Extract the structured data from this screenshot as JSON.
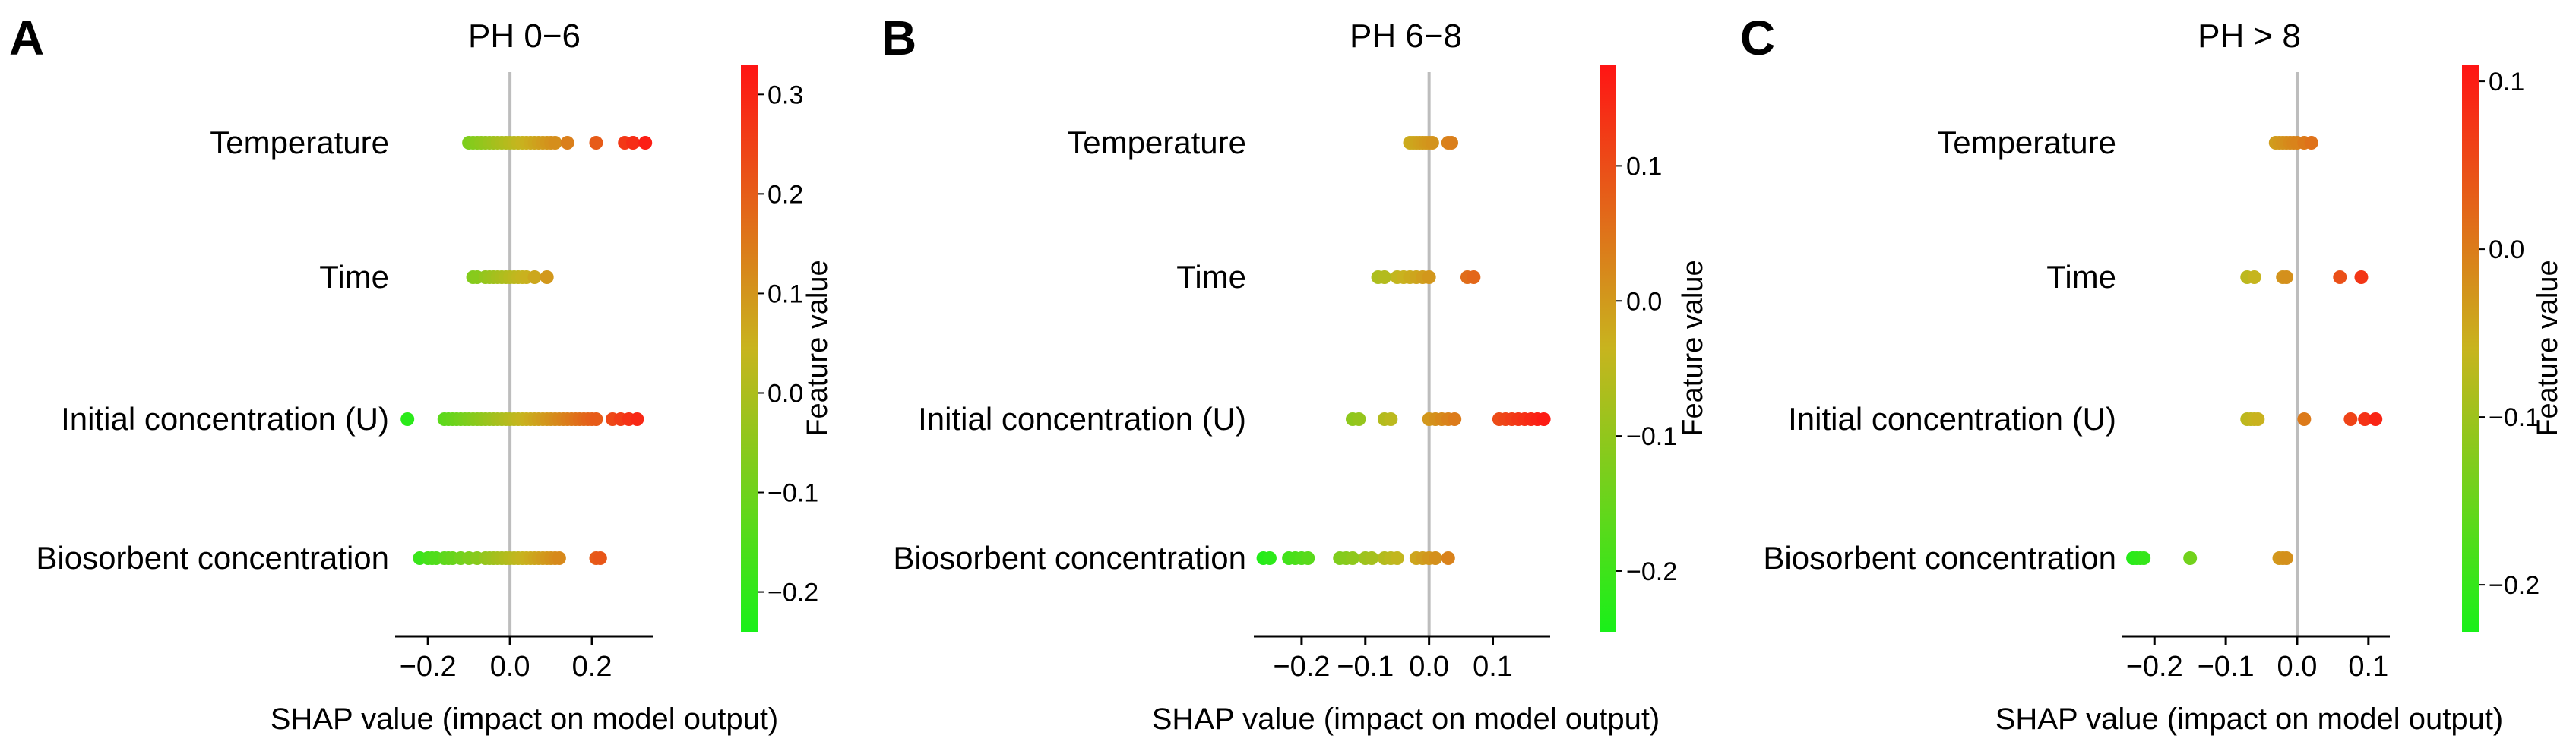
{
  "chart_data": [
    {
      "type": "scatter",
      "panel_letter": "A",
      "title": "PH 0−6",
      "xlabel": "SHAP value (impact on model output)",
      "xlim": [
        -0.28,
        0.35
      ],
      "x_ticks": [
        -0.2,
        0.0,
        0.2
      ],
      "x_tick_labels": [
        "−0.2",
        "0.0",
        "0.2"
      ],
      "features": [
        {
          "name": "Temperature",
          "points": [
            -0.1,
            -0.09,
            -0.08,
            -0.07,
            -0.06,
            -0.05,
            -0.04,
            -0.03,
            -0.02,
            -0.01,
            0.0,
            0.01,
            0.02,
            0.03,
            0.04,
            0.05,
            0.06,
            0.07,
            0.08,
            0.09,
            0.1,
            0.11,
            0.14,
            0.21,
            0.28,
            0.3,
            0.33
          ]
        },
        {
          "name": "Time",
          "points": [
            -0.09,
            -0.08,
            -0.06,
            -0.05,
            -0.04,
            -0.03,
            -0.02,
            -0.01,
            0.0,
            0.01,
            0.02,
            0.03,
            0.04,
            0.06,
            0.09
          ]
        },
        {
          "name": "Initial concentration (U)",
          "points": [
            -0.25,
            -0.16,
            -0.15,
            -0.14,
            -0.13,
            -0.12,
            -0.11,
            -0.1,
            -0.09,
            -0.08,
            -0.07,
            -0.06,
            -0.05,
            -0.04,
            -0.03,
            -0.02,
            -0.01,
            0.0,
            0.01,
            0.02,
            0.03,
            0.04,
            0.05,
            0.06,
            0.07,
            0.08,
            0.09,
            0.1,
            0.11,
            0.12,
            0.13,
            0.14,
            0.15,
            0.16,
            0.17,
            0.18,
            0.19,
            0.2,
            0.21,
            0.25,
            0.27,
            0.29,
            0.31
          ]
        },
        {
          "name": "Biosorbent concentration",
          "points": [
            -0.22,
            -0.2,
            -0.19,
            -0.18,
            -0.16,
            -0.15,
            -0.14,
            -0.12,
            -0.1,
            -0.08,
            -0.06,
            -0.05,
            -0.04,
            -0.03,
            -0.02,
            -0.01,
            0.0,
            0.01,
            0.02,
            0.03,
            0.04,
            0.05,
            0.06,
            0.07,
            0.08,
            0.09,
            0.1,
            0.11,
            0.12,
            0.21,
            0.22
          ]
        }
      ],
      "colorbar": {
        "label": "Feature value",
        "min": -0.24,
        "max": 0.33,
        "ticks": [
          0.3,
          0.2,
          0.1,
          0.0,
          -0.1,
          -0.2
        ],
        "tick_labels": [
          "0.3",
          "0.2",
          "0.1",
          "0.0",
          "−0.1",
          "−0.2"
        ]
      }
    },
    {
      "type": "scatter",
      "panel_letter": "B",
      "title": "PH 6−8",
      "xlabel": "SHAP value (impact on model output)",
      "xlim": [
        -0.275,
        0.19
      ],
      "x_ticks": [
        -0.2,
        -0.1,
        0.0,
        0.1
      ],
      "x_tick_labels": [
        "−0.2",
        "−0.1",
        "0.0",
        "0.1"
      ],
      "features": [
        {
          "name": "Temperature",
          "points": [
            -0.03,
            -0.025,
            -0.02,
            -0.015,
            -0.01,
            -0.005,
            0.0,
            0.005,
            0.03,
            0.035
          ]
        },
        {
          "name": "Time",
          "points": [
            -0.08,
            -0.07,
            -0.05,
            -0.04,
            -0.03,
            -0.02,
            -0.01,
            0.0,
            0.06,
            0.07
          ]
        },
        {
          "name": "Initial concentration (U)",
          "points": [
            -0.12,
            -0.11,
            -0.07,
            -0.06,
            0.0,
            0.01,
            0.02,
            0.03,
            0.04,
            0.11,
            0.12,
            0.13,
            0.14,
            0.15,
            0.16,
            0.17,
            0.18
          ]
        },
        {
          "name": "Biosorbent concentration",
          "points": [
            -0.26,
            -0.25,
            -0.22,
            -0.21,
            -0.2,
            -0.19,
            -0.14,
            -0.13,
            -0.12,
            -0.1,
            -0.09,
            -0.07,
            -0.06,
            -0.05,
            -0.02,
            -0.01,
            0.0,
            0.01,
            0.03
          ]
        }
      ],
      "colorbar": {
        "label": "Feature value",
        "min": -0.245,
        "max": 0.175,
        "ticks": [
          0.1,
          0.0,
          -0.1,
          -0.2
        ],
        "tick_labels": [
          "0.1",
          "0.0",
          "−0.1",
          "−0.2"
        ]
      }
    },
    {
      "type": "scatter",
      "panel_letter": "C",
      "title": "PH > 8",
      "xlabel": "SHAP value (impact on model output)",
      "xlim": [
        -0.245,
        0.13
      ],
      "x_ticks": [
        -0.2,
        -0.1,
        0.0,
        0.1
      ],
      "x_tick_labels": [
        "−0.2",
        "−0.1",
        "0.0",
        "0.1"
      ],
      "features": [
        {
          "name": "Temperature",
          "points": [
            -0.03,
            -0.025,
            -0.02,
            -0.015,
            -0.01,
            -0.005,
            0.0,
            0.01,
            0.02
          ]
        },
        {
          "name": "Time",
          "points": [
            -0.07,
            -0.06,
            -0.02,
            -0.015,
            0.06,
            0.09
          ]
        },
        {
          "name": "Initial concentration (U)",
          "points": [
            -0.07,
            -0.065,
            -0.06,
            -0.055,
            0.01,
            0.075,
            0.095,
            0.11
          ]
        },
        {
          "name": "Biosorbent concentration",
          "points": [
            -0.23,
            -0.225,
            -0.22,
            -0.215,
            -0.15,
            -0.025,
            -0.02,
            -0.015
          ]
        }
      ],
      "colorbar": {
        "label": "Feature value",
        "min": -0.228,
        "max": 0.11,
        "ticks": [
          0.1,
          0.0,
          -0.1,
          -0.2
        ],
        "tick_labels": [
          "0.1",
          "0.0",
          "−0.1",
          "−0.2"
        ]
      }
    }
  ]
}
